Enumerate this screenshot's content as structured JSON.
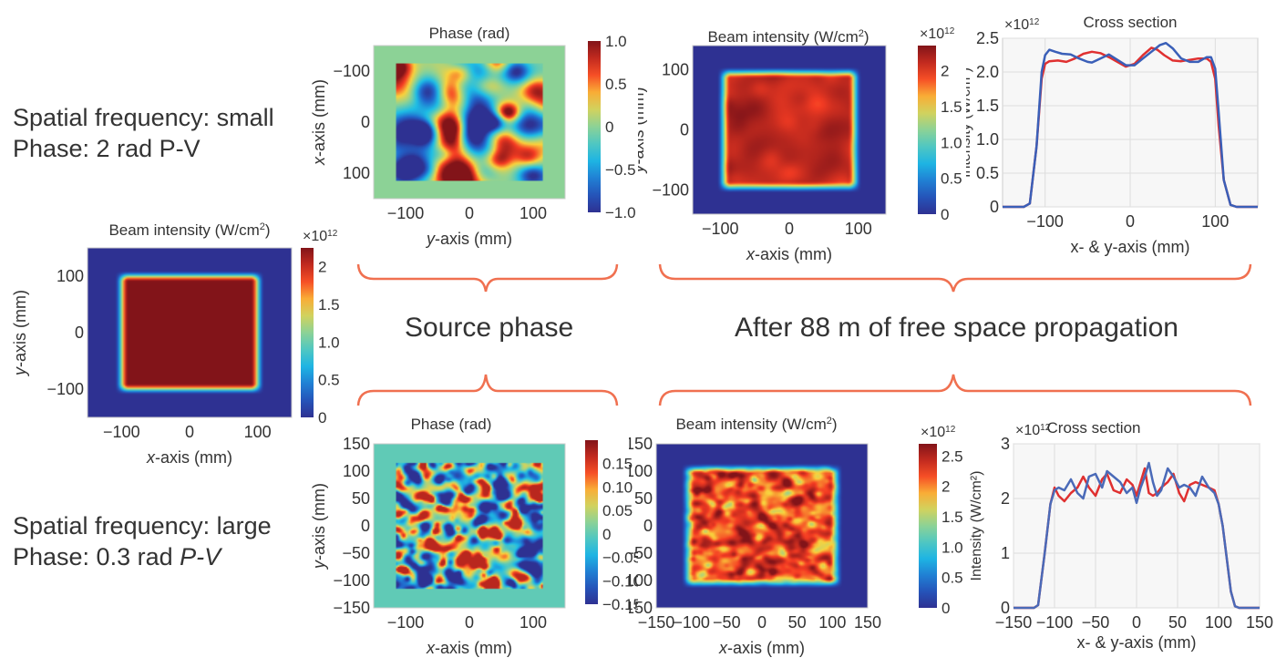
{
  "figure": {
    "left_labels": {
      "top": {
        "line1": "Spatial frequency: small",
        "line2": "Phase: 2 rad P-V"
      },
      "bottom": {
        "line1": "Spatial frequency: large",
        "line2_prefix": "Phase: 0.3 rad ",
        "line2_italic": "P-V"
      }
    },
    "sections": {
      "source_phase": "Source phase",
      "propagation": "After 88 m of free space propagation"
    },
    "colors": {
      "brace": "#f07050",
      "red_line": "#e03030",
      "blue_line": "#3a5fb8",
      "background_green": "#8ecf9e",
      "background_navy": "#2e3d8a"
    }
  },
  "chart_data": [
    {
      "id": "source-intensity",
      "type": "heatmap",
      "title": "Beam intensity (W/cm²)",
      "title_main": "Beam intensity (W/cm",
      "title_sup": "2",
      "title_end": ")",
      "xlabel_italic": "x",
      "xlabel_rest": "-axis (mm)",
      "ylabel_italic": "y",
      "ylabel_rest": "-axis (mm)",
      "xlim": [
        -150,
        150
      ],
      "ylim": [
        -150,
        150
      ],
      "xticks": [
        -100,
        0,
        100
      ],
      "yticks": [
        100,
        0,
        -100
      ],
      "xtick_labels": [
        "−100",
        "0",
        "100"
      ],
      "ytick_labels": [
        "100",
        "0",
        "−100"
      ],
      "colorbar": {
        "min": 0,
        "max": 2.25,
        "ticks": [
          2,
          1.5,
          1.0,
          0.5,
          0
        ],
        "tick_labels": [
          "2",
          "1.5",
          "1.0",
          "0.5",
          "0"
        ],
        "exponent": "×10",
        "exponent_sup": "12"
      },
      "pattern": "flat-top",
      "flat_value": 2.25,
      "half_width": 100,
      "noise": 0
    },
    {
      "id": "phase-small",
      "type": "heatmap",
      "title": "Phase (rad)",
      "xlabel_italic": "y",
      "xlabel_rest": "-axis (mm)",
      "ylabel_italic": "x",
      "ylabel_rest": "-axis (mm)",
      "xlim": [
        -150,
        150
      ],
      "ylim": [
        -150,
        150
      ],
      "xticks": [
        -100,
        0,
        100
      ],
      "yticks": [
        -100,
        0,
        100
      ],
      "xtick_labels": [
        "−100",
        "0",
        "100"
      ],
      "ytick_labels": [
        "−100",
        "0",
        "100"
      ],
      "colorbar": {
        "min": -1.0,
        "max": 1.0,
        "ticks": [
          1.0,
          0.5,
          0,
          -0.5,
          -1.0
        ],
        "tick_labels": [
          "1.0",
          "0.5",
          "0",
          "−0.5",
          "−1.0"
        ]
      },
      "pattern": "phase",
      "half_width": 115,
      "blob_scale": 28,
      "amplitude": 1.0,
      "seed": 7
    },
    {
      "id": "propagated-intensity-small",
      "type": "heatmap",
      "title_main": "Beam intensity (W/cm",
      "title_sup": "2",
      "title_end": ")",
      "xlabel_italic": "x",
      "xlabel_rest": "-axis (mm)",
      "ylabel_italic": "y",
      "ylabel_rest": "-axis (mm)",
      "xlim": [
        -140,
        140
      ],
      "ylim": [
        -140,
        140
      ],
      "xticks": [
        -100,
        0,
        100
      ],
      "yticks": [
        100,
        0,
        -100
      ],
      "xtick_labels": [
        "−100",
        "0",
        "100"
      ],
      "ytick_labels": [
        "100",
        "0",
        "−100"
      ],
      "colorbar": {
        "min": 0,
        "max": 2.35,
        "ticks": [
          2,
          1.5,
          1.0,
          0.5,
          0
        ],
        "tick_labels": [
          "2",
          "1.5",
          "1.0",
          "0.5",
          "0"
        ],
        "exponent": "×10",
        "exponent_sup": "12"
      },
      "pattern": "speckle",
      "flat_value": 2.15,
      "half_width": 95,
      "blob_scale": 22,
      "noise": 0.12,
      "seed": 3
    },
    {
      "id": "cross-section-small",
      "type": "line",
      "title": "Cross section",
      "exponent": "×10",
      "exponent_sup": "12",
      "xlabel": "x- & y-axis (mm)",
      "ylabel": "Intensity (W/cm²)",
      "xlim": [
        -150,
        150
      ],
      "ylim": [
        0,
        2.5
      ],
      "xticks": [
        -100,
        0,
        100
      ],
      "xtick_labels": [
        "−100",
        "0",
        "100"
      ],
      "yticks": [
        0,
        0.5,
        1.0,
        1.5,
        2.0,
        2.5
      ],
      "ytick_labels": [
        "0",
        "0.5",
        "1.0",
        "1.5",
        "2.0",
        "2.5"
      ],
      "grid": true,
      "series": [
        {
          "name": "red",
          "color": "#e03030",
          "x": [
            -150,
            -125,
            -118,
            -110,
            -104,
            -100,
            -95,
            -85,
            -75,
            -65,
            -55,
            -45,
            -35,
            -25,
            -15,
            -5,
            5,
            15,
            25,
            32,
            40,
            50,
            60,
            70,
            80,
            90,
            95,
            100,
            104,
            110,
            118,
            125,
            150
          ],
          "y": [
            0,
            0,
            0.05,
            0.9,
            1.9,
            2.12,
            2.16,
            2.17,
            2.15,
            2.2,
            2.27,
            2.3,
            2.28,
            2.22,
            2.15,
            2.08,
            2.12,
            2.25,
            2.36,
            2.33,
            2.25,
            2.17,
            2.16,
            2.18,
            2.2,
            2.2,
            2.15,
            1.9,
            1.2,
            0.4,
            0.03,
            0,
            0
          ]
        },
        {
          "name": "blue",
          "color": "#3a5fb8",
          "x": [
            -150,
            -125,
            -118,
            -110,
            -104,
            -100,
            -95,
            -88,
            -80,
            -70,
            -60,
            -50,
            -45,
            -35,
            -25,
            -15,
            -5,
            5,
            15,
            25,
            35,
            42,
            50,
            60,
            70,
            80,
            90,
            95,
            100,
            104,
            110,
            118,
            125,
            150
          ],
          "y": [
            0,
            0,
            0.05,
            0.9,
            2.0,
            2.25,
            2.33,
            2.3,
            2.27,
            2.26,
            2.2,
            2.15,
            2.14,
            2.2,
            2.26,
            2.18,
            2.1,
            2.1,
            2.2,
            2.3,
            2.4,
            2.43,
            2.35,
            2.2,
            2.15,
            2.15,
            2.22,
            2.22,
            2.05,
            1.4,
            0.4,
            0.03,
            0,
            0
          ]
        }
      ]
    },
    {
      "id": "phase-large",
      "type": "heatmap",
      "title": "Phase (rad)",
      "xlabel_italic": "x",
      "xlabel_rest": "-axis (mm)",
      "ylabel_italic": "y",
      "ylabel_rest": "-axis (mm)",
      "xlim": [
        -150,
        150
      ],
      "ylim": [
        -150,
        150
      ],
      "xticks": [
        -100,
        0,
        100
      ],
      "yticks": [
        150,
        100,
        50,
        0,
        -50,
        -100,
        -150
      ],
      "xtick_labels": [
        "−100",
        "0",
        "100"
      ],
      "ytick_labels": [
        "150",
        "100",
        "50",
        "0",
        "−50",
        "−100",
        "−150"
      ],
      "colorbar": {
        "min": -0.15,
        "max": 0.2,
        "ticks": [
          0.15,
          0.1,
          0.05,
          0,
          -0.05,
          -0.1,
          -0.15
        ],
        "tick_labels": [
          "0.15",
          "0.10",
          "0.05",
          "0",
          "−0.05",
          "−0.10",
          "−0.15"
        ]
      },
      "pattern": "phase",
      "half_width": 115,
      "blob_scale": 9,
      "amplitude": 0.17,
      "seed": 11
    },
    {
      "id": "propagated-intensity-large",
      "type": "heatmap",
      "title_main": "Beam intensity (W/cm",
      "title_sup": "2",
      "title_end": ")",
      "xlabel_italic": "x",
      "xlabel_rest": "-axis (mm)",
      "ylabel_italic": "y",
      "ylabel_rest": "-axis (mm)",
      "xlim": [
        -150,
        150
      ],
      "ylim": [
        -150,
        150
      ],
      "xticks": [
        -150,
        -100,
        -50,
        0,
        50,
        100,
        150
      ],
      "yticks": [
        150,
        100,
        50,
        0,
        -50,
        -100,
        -150
      ],
      "xtick_labels": [
        "−150",
        "−100",
        "−50",
        "0",
        "50",
        "100",
        "150"
      ],
      "ytick_labels": [
        "150",
        "100",
        "50",
        "0",
        "−50",
        "−100",
        "−150"
      ],
      "colorbar": {
        "min": 0,
        "max": 2.7,
        "ticks": [
          2.5,
          2,
          1.5,
          1.0,
          0.5,
          0
        ],
        "tick_labels": [
          "2.5",
          "2",
          "1.5",
          "1.0",
          "0.5",
          "0"
        ],
        "exponent": "×10",
        "exponent_sup": "12",
        "side_label": "Intensity (W/cm²)"
      },
      "pattern": "speckle",
      "flat_value": 2.2,
      "half_width": 105,
      "blob_scale": 7,
      "noise": 0.28,
      "seed": 5
    },
    {
      "id": "cross-section-large",
      "type": "line",
      "title": "Cross section",
      "exponent": "×10",
      "exponent_sup": "12",
      "xlabel": "x- & y-axis (mm)",
      "ylabel": "Intensity (W/cm²)",
      "xlim": [
        -150,
        150
      ],
      "ylim": [
        0,
        3
      ],
      "xticks": [
        -150,
        -100,
        -50,
        0,
        50,
        100,
        150
      ],
      "xtick_labels": [
        "−150",
        "−100",
        "−50",
        "0",
        "50",
        "100",
        "150"
      ],
      "yticks": [
        0,
        1,
        2,
        3
      ],
      "ytick_labels": [
        "0",
        "1",
        "2",
        "3"
      ],
      "grid": true,
      "series": [
        {
          "name": "red",
          "color": "#e03030",
          "x": [
            -150,
            -125,
            -120,
            -112,
            -105,
            -100,
            -95,
            -88,
            -80,
            -72,
            -65,
            -58,
            -50,
            -42,
            -36,
            -28,
            -20,
            -12,
            -5,
            0,
            5,
            10,
            15,
            20,
            25,
            30,
            38,
            45,
            52,
            58,
            65,
            72,
            80,
            88,
            95,
            100,
            105,
            110,
            115,
            120,
            125,
            150
          ],
          "y": [
            0,
            0,
            0.05,
            1.0,
            1.9,
            2.2,
            2.05,
            1.95,
            2.1,
            2.2,
            2.4,
            2.2,
            2.05,
            2.35,
            2.45,
            2.15,
            2.1,
            2.35,
            2.25,
            2.05,
            2.3,
            2.55,
            2.1,
            2.05,
            2.1,
            2.2,
            2.3,
            2.45,
            2.1,
            1.95,
            2.25,
            2.3,
            2.25,
            2.2,
            2.15,
            1.9,
            1.5,
            0.9,
            0.3,
            0.03,
            0,
            0
          ]
        },
        {
          "name": "blue",
          "color": "#4a6ab8",
          "x": [
            -150,
            -125,
            -120,
            -112,
            -105,
            -100,
            -95,
            -88,
            -80,
            -72,
            -65,
            -58,
            -50,
            -42,
            -36,
            -28,
            -20,
            -12,
            -5,
            0,
            5,
            10,
            15,
            20,
            25,
            30,
            38,
            45,
            52,
            58,
            65,
            72,
            80,
            88,
            95,
            100,
            105,
            110,
            115,
            120,
            125,
            150
          ],
          "y": [
            0,
            0,
            0.05,
            1.0,
            1.9,
            2.15,
            2.2,
            2.15,
            2.35,
            2.1,
            2.0,
            2.4,
            2.45,
            2.2,
            2.5,
            2.4,
            2.3,
            2.1,
            2.2,
            1.92,
            2.2,
            2.4,
            2.65,
            2.3,
            2.05,
            2.15,
            2.55,
            2.4,
            2.2,
            2.25,
            2.2,
            2.05,
            2.4,
            2.2,
            2.1,
            1.9,
            1.5,
            0.9,
            0.3,
            0.03,
            0,
            0
          ]
        }
      ]
    }
  ]
}
